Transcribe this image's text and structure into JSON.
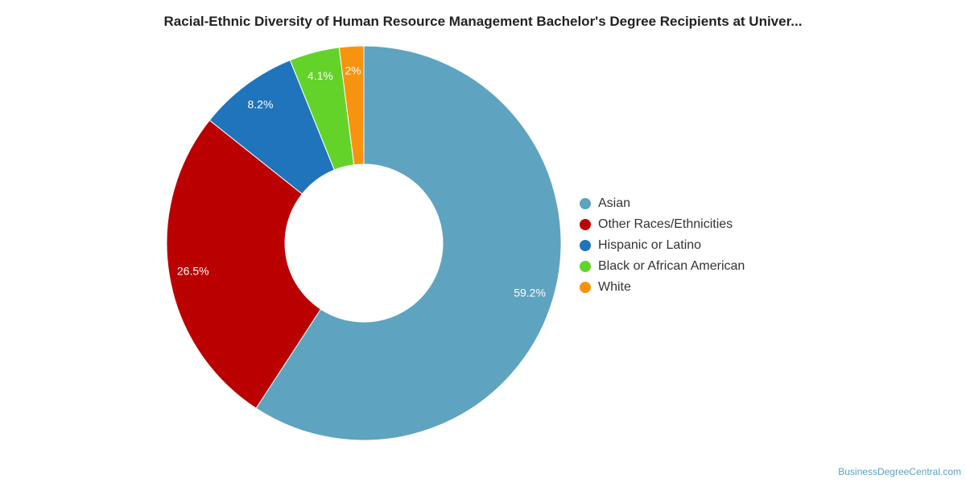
{
  "chart_data": {
    "type": "pie",
    "title": "Racial-Ethnic Diversity of Human Resource Management Bachelor's Degree Recipients at Univer...",
    "categories": [
      "Asian",
      "Other Races/Ethnicities",
      "Hispanic or Latino",
      "Black or African American",
      "White"
    ],
    "values": [
      59.2,
      26.5,
      8.2,
      4.1,
      2
    ],
    "data_labels": [
      "59.2%",
      "26.5%",
      "8.2%",
      "4.1%",
      "2%"
    ],
    "colors": [
      "#5ea3bf",
      "#bb0000",
      "#1f74bc",
      "#63d32a",
      "#f7930f"
    ],
    "donut": true,
    "legend_position": "right"
  },
  "credit": "BusinessDegreeCentral.com"
}
